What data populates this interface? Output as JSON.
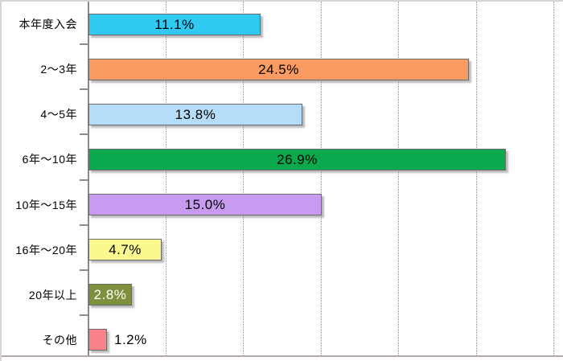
{
  "chart_data": {
    "type": "bar",
    "orientation": "horizontal",
    "title": "",
    "xlabel": "",
    "ylabel": "",
    "categories": [
      "本年度入会",
      "2〜3年",
      "4〜5年",
      "6年〜10年",
      "10年〜15年",
      "16年〜20年",
      "20年以上",
      "その他"
    ],
    "values": [
      11.1,
      24.5,
      13.8,
      26.9,
      15.0,
      4.7,
      2.8,
      1.2
    ],
    "value_labels": [
      "11.1%",
      "24.5%",
      "13.8%",
      "26.9%",
      "15.0%",
      "4.7%",
      "2.8%",
      "1.2%"
    ],
    "bar_colors": [
      "#2fc9f1",
      "#fb9b64",
      "#b5dcf8",
      "#0aa94e",
      "#c79cf0",
      "#faf88e",
      "#7d903e",
      "#f9818a"
    ],
    "value_label_colors": [
      "#000000",
      "#000000",
      "#000000",
      "#000000",
      "#000000",
      "#000000",
      "#ffffff",
      "#000000"
    ],
    "value_label_positions": [
      "inside",
      "inside",
      "inside",
      "inside",
      "inside",
      "inside",
      "inside",
      "outside"
    ],
    "xlim": [
      0,
      30
    ],
    "gridline_step": 5,
    "grid": "vertical-dotted",
    "legend": "none",
    "colors": {
      "axis": "#8a8a8a",
      "gridline": "#9a9a9a",
      "bar_border": "#6b6b6b",
      "background": "#ffffff",
      "frame_bottom": "#b3a8a8"
    }
  }
}
